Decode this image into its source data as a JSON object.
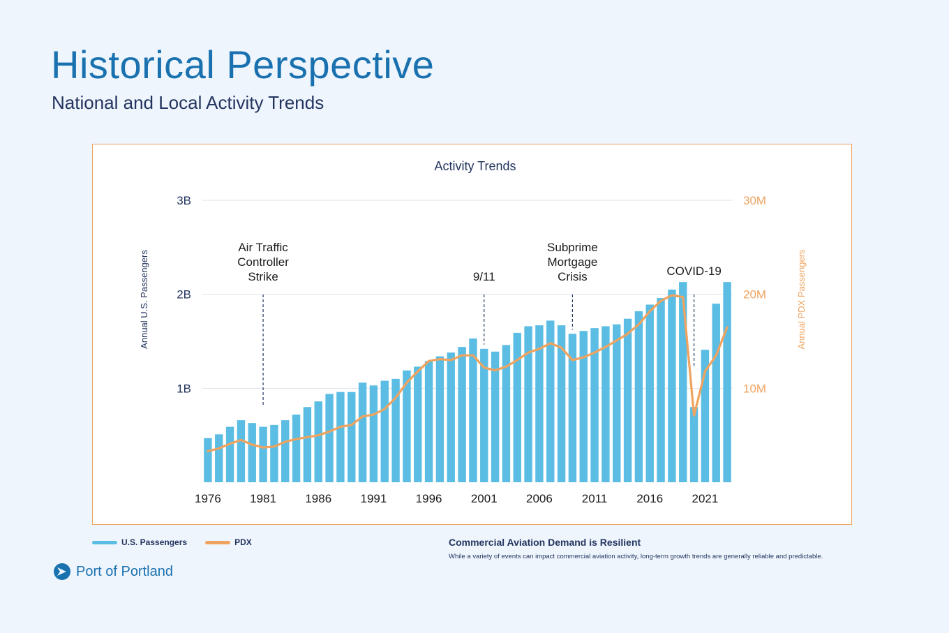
{
  "header": {
    "title": "Historical Perspective",
    "subtitle": "National and Local Activity Trends"
  },
  "colors": {
    "bars": "#5bbde3",
    "line": "#f0a35e",
    "text_dark": "#23345f",
    "title_blue": "#1a71b0",
    "grid": "#dde3ea"
  },
  "chart_data": {
    "type": "bar",
    "title": "Activity Trends",
    "xlabel": "",
    "ylabel": "Annual U.S. Passengers",
    "y2label": "Annual PDX Passengers",
    "ylim": [
      0,
      3000000000
    ],
    "y2lim": [
      0,
      30000000
    ],
    "yticks": [
      {
        "value": 1000000000,
        "label": "1B"
      },
      {
        "value": 2000000000,
        "label": "2B"
      },
      {
        "value": 3000000000,
        "label": "3B"
      }
    ],
    "y2ticks": [
      {
        "value": 10000000,
        "label": "10M"
      },
      {
        "value": 20000000,
        "label": "20M"
      },
      {
        "value": 30000000,
        "label": "30M"
      }
    ],
    "xticks": [
      "1976",
      "1981",
      "1986",
      "1991",
      "1996",
      "2001",
      "2006",
      "2011",
      "2016",
      "2021"
    ],
    "x": [
      1976,
      1977,
      1978,
      1979,
      1980,
      1981,
      1982,
      1983,
      1984,
      1985,
      1986,
      1987,
      1988,
      1989,
      1990,
      1991,
      1992,
      1993,
      1994,
      1995,
      1996,
      1997,
      1998,
      1999,
      2000,
      2001,
      2002,
      2003,
      2004,
      2005,
      2006,
      2007,
      2008,
      2009,
      2010,
      2011,
      2012,
      2013,
      2014,
      2015,
      2016,
      2017,
      2018,
      2019,
      2020,
      2021,
      2022,
      2023
    ],
    "series": [
      {
        "name": "U.S. Passengers",
        "type": "bar",
        "axis": "left",
        "values": [
          470000000,
          510000000,
          590000000,
          660000000,
          630000000,
          590000000,
          610000000,
          660000000,
          720000000,
          800000000,
          860000000,
          940000000,
          960000000,
          960000000,
          1060000000,
          1030000000,
          1080000000,
          1100000000,
          1190000000,
          1230000000,
          1290000000,
          1340000000,
          1380000000,
          1440000000,
          1530000000,
          1420000000,
          1390000000,
          1460000000,
          1590000000,
          1660000000,
          1670000000,
          1720000000,
          1670000000,
          1580000000,
          1610000000,
          1640000000,
          1660000000,
          1680000000,
          1740000000,
          1820000000,
          1890000000,
          1960000000,
          2050000000,
          2130000000,
          800000000,
          1410000000,
          1900000000,
          2130000000
        ]
      },
      {
        "name": "PDX",
        "type": "line",
        "axis": "right",
        "values": [
          3300000,
          3600000,
          4100000,
          4500000,
          4000000,
          3700000,
          3800000,
          4300000,
          4600000,
          4800000,
          5000000,
          5400000,
          5900000,
          6100000,
          7000000,
          7200000,
          7800000,
          9000000,
          10600000,
          11800000,
          12900000,
          13100000,
          13000000,
          13500000,
          13500000,
          12200000,
          11900000,
          12300000,
          13000000,
          13800000,
          14200000,
          14800000,
          14300000,
          13000000,
          13300000,
          13800000,
          14400000,
          15100000,
          15800000,
          16800000,
          18200000,
          19300000,
          19900000,
          19700000,
          7100000,
          11800000,
          13500000,
          16500000
        ]
      }
    ],
    "annotations": [
      {
        "year": 1981,
        "label": [
          "Air Traffic",
          "Controller",
          "Strike"
        ]
      },
      {
        "year": 2001,
        "label": [
          "9/11"
        ]
      },
      {
        "year": 2009,
        "label": [
          "Subprime",
          "Mortgage",
          "Crisis"
        ]
      },
      {
        "year": 2020,
        "label": [
          "COVID-19"
        ]
      }
    ]
  },
  "legend": {
    "items": [
      {
        "label": "U.S. Passengers",
        "color": "#5bbde3"
      },
      {
        "label": "PDX",
        "color": "#f0a35e"
      }
    ]
  },
  "callout": {
    "title": "Commercial Aviation Demand is Resilient",
    "text": "While a variety of events can impact commercial aviation activity, long-term growth trends are generally reliable and predictable."
  },
  "logo": {
    "text": "Port of Portland"
  }
}
